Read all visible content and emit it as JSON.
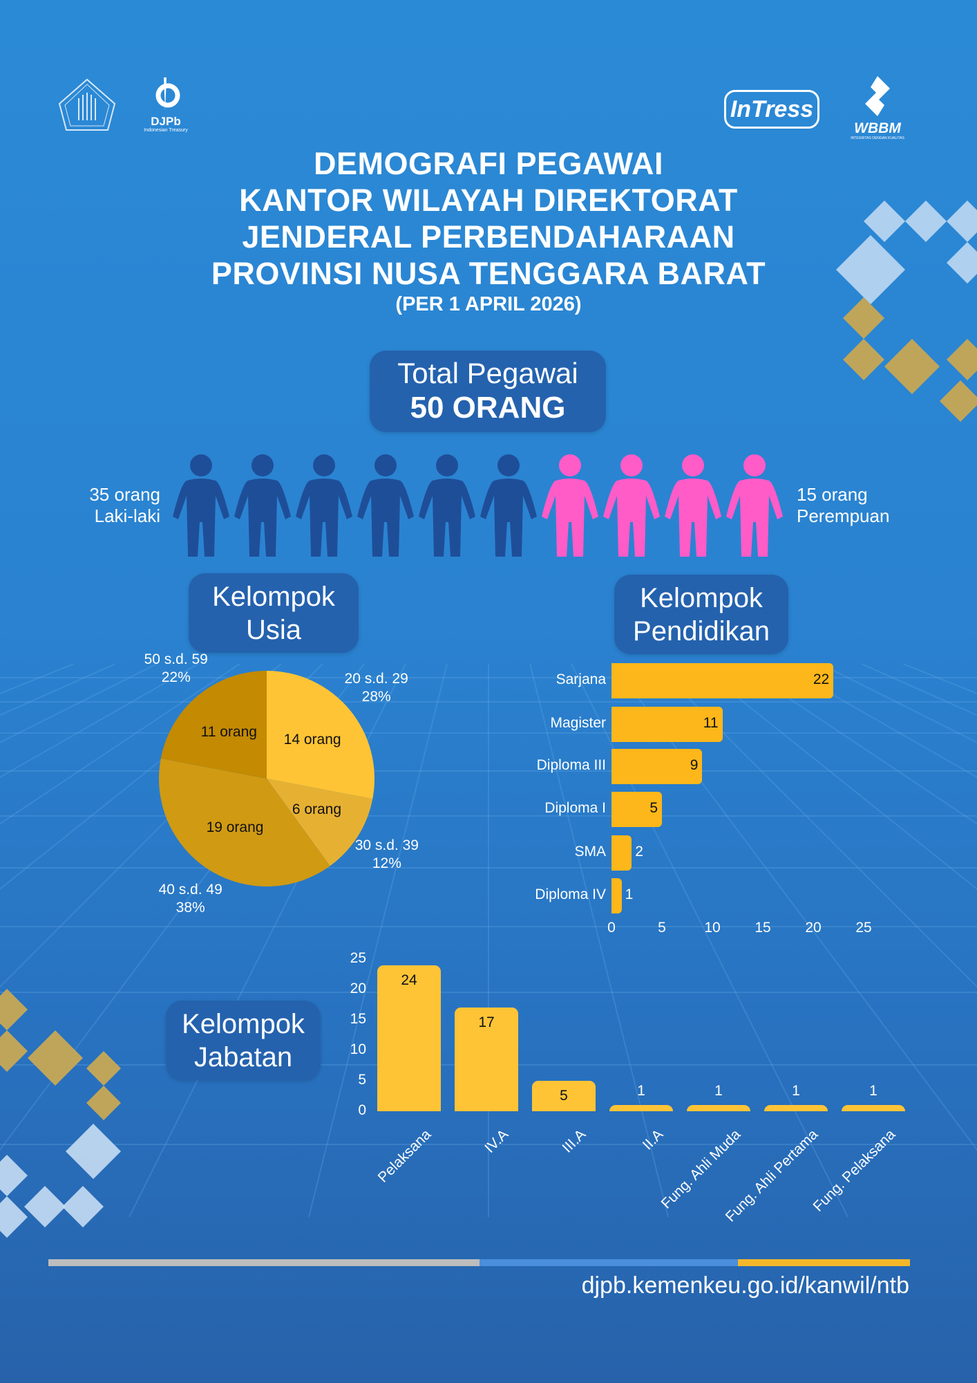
{
  "logos": {
    "kemenkeu": "Kementerian Keuangan",
    "djpb": "DJPb",
    "djpb_sub": "Indonesian Treasury",
    "intress": "InTress",
    "wbbm": "WBBM",
    "wbbm_sub": "INTEGRITAS DENGAN KUALITAS"
  },
  "header": {
    "title_lines": [
      "DEMOGRAFI PEGAWAI",
      "KANTOR WILAYAH DIREKTORAT",
      "JENDERAL PERBENDAHARAAN",
      "PROVINSI NUSA TENGGARA BARAT"
    ],
    "subtitle": "(PER 1 APRIL 2026)"
  },
  "total": {
    "label": "Total Pegawai",
    "value": "50 ORANG"
  },
  "gender": {
    "male": {
      "count": "35 orang",
      "label": "Laki-laki",
      "icons": 6,
      "color": "#1F4E99"
    },
    "female": {
      "count": "15 orang",
      "label": "Perempuan",
      "icons": 4,
      "color": "#FF5CC8"
    }
  },
  "sections": {
    "usia": [
      "Kelompok",
      "Usia"
    ],
    "pendidikan": [
      "Kelompok",
      "Pendidikan"
    ],
    "jabatan": [
      "Kelompok",
      "Jabatan"
    ]
  },
  "chart_data": [
    {
      "type": "pie",
      "title": "Kelompok Usia",
      "slices": [
        {
          "category": "20 s.d. 29",
          "value": 14,
          "percent": "28%",
          "label": "14 orang",
          "color": "#FFC435"
        },
        {
          "category": "30 s.d. 39",
          "value": 6,
          "percent": "12%",
          "label": "6 orang",
          "color": "#E6B133"
        },
        {
          "category": "40 s.d. 49",
          "value": 19,
          "percent": "38%",
          "label": "19 orang",
          "color": "#D09A13"
        },
        {
          "category": "50 s.d. 59",
          "value": 11,
          "percent": "22%",
          "label": "11 orang",
          "color": "#C38A02"
        }
      ]
    },
    {
      "type": "bar",
      "orientation": "horizontal",
      "title": "Kelompok Pendidikan",
      "categories": [
        "Sarjana",
        "Magister",
        "Diploma III",
        "Diploma I",
        "SMA",
        "Diploma IV"
      ],
      "values": [
        22,
        11,
        9,
        5,
        2,
        1
      ],
      "xlim": [
        0,
        25
      ],
      "ticks": [
        0,
        5,
        10,
        15,
        20,
        25
      ],
      "color": "#FDB71A"
    },
    {
      "type": "bar",
      "orientation": "vertical",
      "title": "Kelompok Jabatan",
      "categories": [
        "Pelaksana",
        "IV.A",
        "III.A",
        "II.A",
        "Fung. Ahli Muda",
        "Fung. Ahli Pertama",
        "Fung. Pelaksana"
      ],
      "values": [
        24,
        17,
        5,
        1,
        1,
        1,
        1
      ],
      "ylim": [
        0,
        25
      ],
      "ticks": [
        0,
        5,
        10,
        15,
        20,
        25
      ],
      "color": "#FFC436"
    }
  ],
  "footer": {
    "url": "djpb.kemenkeu.go.id/kanwil/ntb",
    "colors": [
      "#BDBDBD",
      "#4A8EDC",
      "#F5B72A"
    ]
  }
}
